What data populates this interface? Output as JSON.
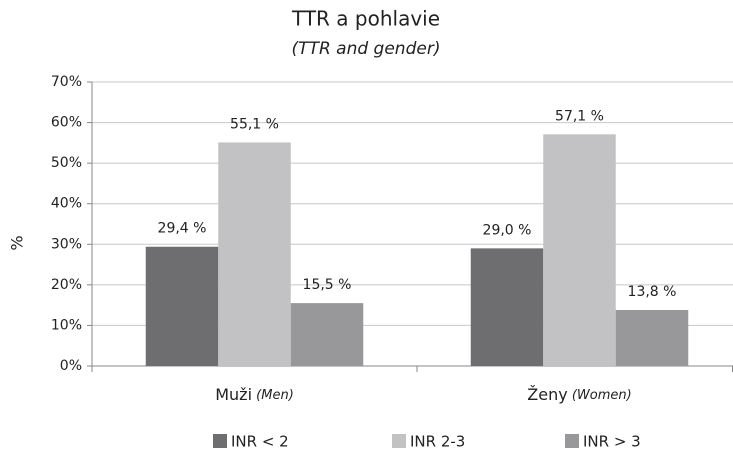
{
  "chart_data": {
    "type": "bar",
    "title": "TTR a pohlavie",
    "subtitle": "(TTR and gender)",
    "y_label": "%",
    "categories": [
      "Muži (Men)",
      "Ženy (Women)"
    ],
    "series": [
      {
        "name": "INR < 2",
        "color": "#6e6e70",
        "values": [
          29.4,
          29.0
        ],
        "value_labels": [
          "29,4 %",
          "29,0 %"
        ]
      },
      {
        "name": "INR 2-3",
        "color": "#c2c2c4",
        "values": [
          55.1,
          57.1
        ],
        "value_labels": [
          "55,1 %",
          "57,1 %"
        ]
      },
      {
        "name": "INR > 3",
        "color": "#98989a",
        "values": [
          15.5,
          13.8
        ],
        "value_labels": [
          "15,5 %",
          "13,8 %"
        ]
      }
    ],
    "ylim": [
      0,
      70
    ],
    "yticks": [
      {
        "value": 0,
        "label": "0%"
      },
      {
        "value": 10,
        "label": "10%"
      },
      {
        "value": 20,
        "label": "20%"
      },
      {
        "value": 30,
        "label": "30%"
      },
      {
        "value": 40,
        "label": "40%"
      },
      {
        "value": 50,
        "label": "50%"
      },
      {
        "value": 60,
        "label": "60%"
      },
      {
        "value": 70,
        "label": "70%"
      }
    ],
    "grid": true
  }
}
